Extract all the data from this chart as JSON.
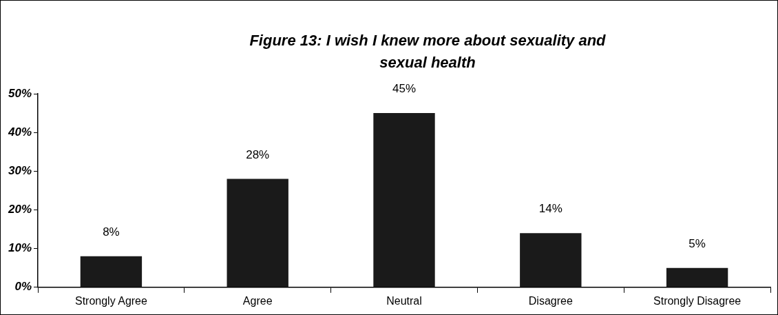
{
  "chart_data": {
    "type": "bar",
    "title": "Figure 13: I wish I knew more about  sexuality and sexual health",
    "categories": [
      "Strongly Agree",
      "Agree",
      "Neutral",
      "Disagree",
      "Strongly Disagree"
    ],
    "values": [
      8,
      28,
      45,
      14,
      5
    ],
    "value_labels": [
      "8%",
      "28%",
      "45%",
      "14%",
      "5%"
    ],
    "color": "#1a1a1a",
    "ylim": [
      0,
      50
    ],
    "yticks": [
      {
        "value": 0,
        "label": "0%"
      },
      {
        "value": 10,
        "label": "10%"
      },
      {
        "value": 20,
        "label": "20%"
      },
      {
        "value": 30,
        "label": "30%"
      },
      {
        "value": 40,
        "label": "40%"
      },
      {
        "value": 50,
        "label": "50%"
      }
    ],
    "grid": false,
    "legend": false
  }
}
